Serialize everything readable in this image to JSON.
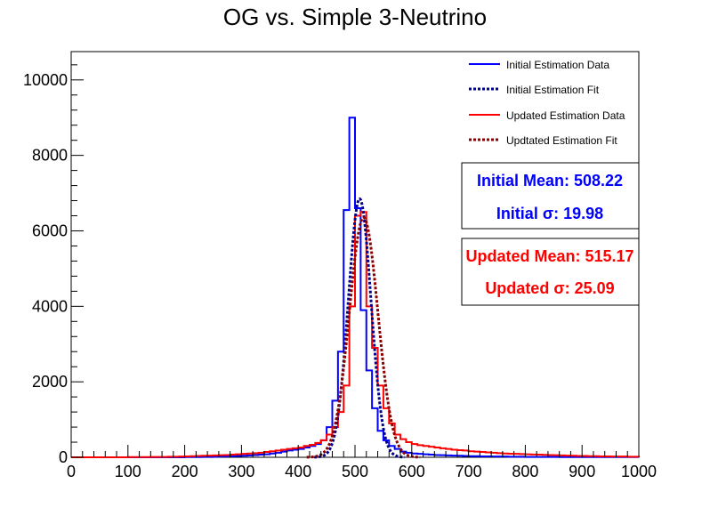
{
  "chart_data": {
    "type": "histogram",
    "title": "OG vs. Simple 3-Neutrino",
    "xlabel": "",
    "ylabel": "",
    "xlim": [
      0,
      1000
    ],
    "ylim": [
      0,
      10750
    ],
    "bin_width": 10,
    "x_ticks": [
      "0",
      "100",
      "200",
      "300",
      "400",
      "500",
      "600",
      "700",
      "800",
      "900",
      "1000"
    ],
    "y_ticks": [
      "0",
      "2000",
      "4000",
      "6000",
      "8000",
      "10000"
    ],
    "x_tick_values": [
      0,
      100,
      200,
      300,
      400,
      500,
      600,
      700,
      800,
      900,
      1000
    ],
    "y_tick_values": [
      0,
      2000,
      4000,
      6000,
      8000,
      10000
    ],
    "grid": false,
    "legend_position": "top-right",
    "legend": [
      {
        "label": "Initial Estimation Data",
        "color": "#0000ff",
        "style": "solid"
      },
      {
        "label": "Initial Estimation Fit",
        "color": "#00008b",
        "style": "dotted"
      },
      {
        "label": "Updated Estimation Data",
        "color": "#ff0000",
        "style": "solid"
      },
      {
        "label": "Updtated Estimation Fit",
        "color": "#8b0000",
        "style": "dotted"
      }
    ],
    "stats": [
      {
        "line1": "Initial Mean: 508.22",
        "line2": "Initial σ: 19.98",
        "color": "#0000ff"
      },
      {
        "line1": "Updated Mean: 515.17",
        "line2": "Updated σ: 25.09",
        "color": "#ff0000"
      }
    ],
    "series": [
      {
        "name": "Initial Estimation Data",
        "color": "#0000ff",
        "bin_edges_start": 0,
        "values": [
          0,
          0,
          0,
          0,
          0,
          0,
          0,
          0,
          0,
          0,
          0,
          0,
          0,
          0,
          0,
          0,
          0,
          0,
          0,
          0,
          5,
          5,
          5,
          10,
          10,
          15,
          20,
          25,
          30,
          35,
          40,
          50,
          60,
          70,
          80,
          100,
          120,
          150,
          180,
          200,
          220,
          260,
          300,
          350,
          450,
          800,
          1500,
          2800,
          6550,
          9000,
          6600,
          3900,
          2300,
          1300,
          700,
          450,
          300,
          220,
          150,
          120,
          100,
          90,
          80,
          70,
          60,
          55,
          50,
          45,
          40,
          35,
          30,
          30,
          25,
          25,
          20,
          20,
          20,
          15,
          15,
          15,
          10,
          10,
          10,
          10,
          10,
          10,
          5,
          5,
          5,
          5,
          5,
          5,
          5,
          5,
          5,
          5,
          5,
          5,
          5,
          5
        ]
      },
      {
        "name": "Updated Estimation Data",
        "color": "#ff0000",
        "bin_edges_start": 0,
        "values": [
          0,
          0,
          0,
          0,
          0,
          0,
          0,
          0,
          0,
          0,
          5,
          5,
          5,
          5,
          10,
          10,
          10,
          15,
          15,
          20,
          25,
          30,
          35,
          40,
          45,
          50,
          55,
          60,
          70,
          80,
          90,
          100,
          110,
          120,
          140,
          160,
          180,
          200,
          220,
          240,
          260,
          300,
          330,
          380,
          450,
          600,
          800,
          1200,
          1900,
          4000,
          6400,
          6500,
          4000,
          2900,
          1900,
          1300,
          900,
          600,
          480,
          400,
          350,
          320,
          300,
          280,
          260,
          240,
          220,
          200,
          190,
          180,
          160,
          150,
          140,
          130,
          120,
          110,
          100,
          95,
          90,
          85,
          80,
          75,
          70,
          65,
          60,
          55,
          50,
          45,
          40,
          35,
          35,
          30,
          30,
          25,
          25,
          20,
          20,
          20,
          15,
          15
        ]
      },
      {
        "name": "Initial Estimation Fit",
        "color": "#00008b",
        "fit": "gaussian",
        "mean": 508.22,
        "sigma": 19.98,
        "amplitude": 6850
      },
      {
        "name": "Updtated Estimation Fit",
        "color": "#8b0000",
        "fit": "gaussian",
        "mean": 515.17,
        "sigma": 25.09,
        "amplitude": 6350
      }
    ]
  }
}
